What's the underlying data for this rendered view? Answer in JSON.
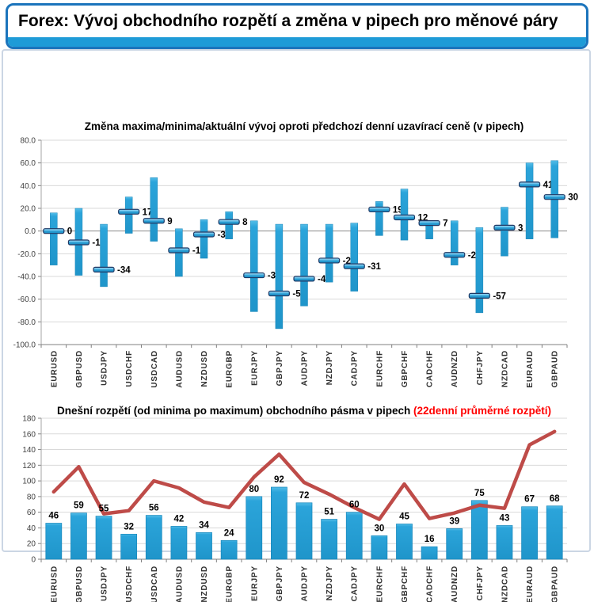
{
  "header": {
    "title": "Forex: Vývoj obchodního rozpětí a změna v pipech pro měnové páry"
  },
  "colors": {
    "accent_blue": "#1B74BC",
    "strip_blue": "#1E9BD7",
    "bar_blue": "#259FD6",
    "marker_border": "#1F3864",
    "line_red": "#BE4B48",
    "title_red": "#FF0000",
    "gridline": "#D9D9D9",
    "axis": "#808080"
  },
  "chart_data": [
    {
      "type": "hilo",
      "title": "Změna maxima/minima/aktuální vývoj oproti předchozí denní uzavírací ceně (v pipech)",
      "categories": [
        "EURUSD",
        "GBPUSD",
        "USDJPY",
        "USDCHF",
        "USDCAD",
        "AUDUSD",
        "NZDUSD",
        "EURGBP",
        "EURJPY",
        "GBPJPY",
        "AUDJPY",
        "NZDJPY",
        "CADJPY",
        "EURCHF",
        "GBPCHF",
        "CADCHF",
        "AUDNZD",
        "CHFJPY",
        "NZDCAD",
        "EURAUD",
        "GBPAUD"
      ],
      "series": [
        {
          "name": "maximum",
          "values": [
            16,
            20,
            6,
            30,
            47,
            2,
            10,
            17,
            9,
            6,
            6,
            6,
            7,
            26,
            37,
            9,
            9,
            3,
            21,
            60,
            62
          ]
        },
        {
          "name": "minimum",
          "values": [
            -30,
            -39,
            -49,
            -2,
            -9,
            -40,
            -24,
            -7,
            -71,
            -86,
            -66,
            -45,
            -53,
            -4,
            -8,
            -7,
            -30,
            -72,
            -22,
            -7,
            -6
          ]
        },
        {
          "name": "aktuální",
          "values": [
            0,
            -10,
            -34,
            17,
            9,
            -17,
            -3,
            8,
            -39,
            -55,
            -42,
            -26,
            -31,
            19,
            12,
            7,
            -21,
            -57,
            3,
            41,
            30
          ]
        }
      ],
      "data_labels": "aktuální",
      "ylim": [
        -100,
        80
      ],
      "ytick_step": 20,
      "ytick_labels": [
        "80.0",
        "60.0",
        "40.0",
        "20.0",
        "0.0",
        "-20.0",
        "-40.0",
        "-60.0",
        "-80.0",
        "-100.0"
      ],
      "grid": true,
      "legend": "none"
    },
    {
      "type": "bar+line",
      "title": "Dnešní rozpětí (od minima po maximum) obchodního pásma v pipech",
      "title_suffix": " (22denní průměrné rozpětí)",
      "categories": [
        "EURUSD",
        "GBPUSD",
        "USDJPY",
        "USDCHF",
        "USDCAD",
        "AUDUSD",
        "NZDUSD",
        "EURGBP",
        "EURJPY",
        "GBPJPY",
        "AUDJPY",
        "NZDJPY",
        "CADJPY",
        "EURCHF",
        "GBPCHF",
        "CADCHF",
        "AUDNZD",
        "CHFJPY",
        "NZDCAD",
        "EURAUD",
        "GBPAUD"
      ],
      "series": [
        {
          "name": "Dnešní rozpětí",
          "type": "bar",
          "values": [
            46,
            59,
            55,
            32,
            56,
            42,
            34,
            24,
            80,
            92,
            72,
            51,
            60,
            30,
            45,
            16,
            39,
            75,
            43,
            67,
            68
          ]
        },
        {
          "name": "22denní průměrné rozpětí",
          "type": "line",
          "values": [
            86,
            118,
            58,
            62,
            100,
            91,
            73,
            66,
            105,
            134,
            98,
            83,
            66,
            51,
            96,
            52,
            59,
            69,
            65,
            146,
            163
          ]
        }
      ],
      "data_labels": "bar",
      "ylim": [
        0,
        180
      ],
      "ytick_step": 20,
      "ytick_labels": [
        "180",
        "160",
        "140",
        "120",
        "100",
        "80",
        "60",
        "40",
        "20",
        "0"
      ],
      "grid": true,
      "legend": "none"
    }
  ]
}
